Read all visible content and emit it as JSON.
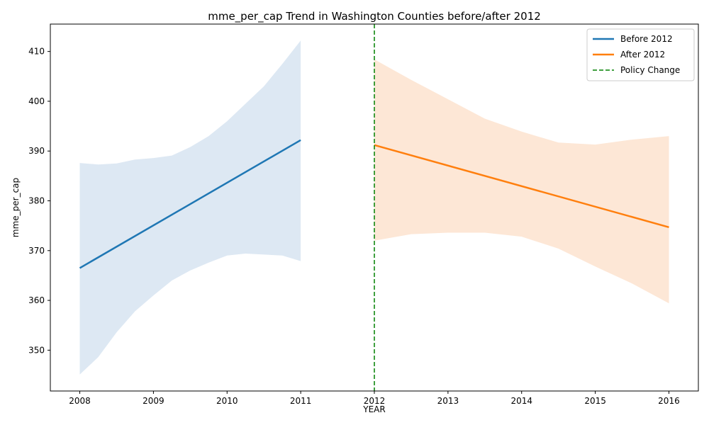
{
  "chart_data": {
    "type": "line",
    "title": "mme_per_cap Trend in Washington Counties before/after 2012",
    "xlabel": "YEAR",
    "ylabel": "mme_per_cap",
    "xlim": [
      2007.6,
      2016.4
    ],
    "ylim": [
      341.8,
      415.5
    ],
    "x_ticks": [
      2008,
      2009,
      2010,
      2011,
      2012,
      2013,
      2014,
      2015,
      2016
    ],
    "y_ticks": [
      350,
      360,
      370,
      380,
      390,
      400,
      410
    ],
    "grid": false,
    "legend_position": "top-right",
    "series": [
      {
        "name": "Before 2012",
        "color": "#1f77b4",
        "band_color": "#dde8f3",
        "line": {
          "x": [
            2008,
            2011
          ],
          "y": [
            366.5,
            392.2
          ]
        },
        "ci_x": [
          2008,
          2008.25,
          2008.5,
          2008.75,
          2009,
          2009.25,
          2009.5,
          2009.75,
          2010,
          2010.25,
          2010.5,
          2010.75,
          2011
        ],
        "ci_upper": [
          387.6,
          387.3,
          387.5,
          388.3,
          388.6,
          389.1,
          390.8,
          393.0,
          396.0,
          399.5,
          403.0,
          407.5,
          412.2
        ],
        "ci_lower": [
          345.1,
          348.6,
          353.6,
          357.8,
          361.0,
          364.0,
          366.0,
          367.6,
          369.0,
          369.4,
          369.2,
          369.0,
          367.9
        ]
      },
      {
        "name": "After 2012",
        "color": "#ff7f0e",
        "band_color": "#fde7d6",
        "line": {
          "x": [
            2012,
            2016
          ],
          "y": [
            391.2,
            374.7
          ]
        },
        "ci_x": [
          2012,
          2012.5,
          2013,
          2013.5,
          2014,
          2014.5,
          2015,
          2015.5,
          2016
        ],
        "ci_upper": [
          408.4,
          404.3,
          400.4,
          396.5,
          393.9,
          391.7,
          391.3,
          392.3,
          393.0
        ],
        "ci_lower": [
          372.0,
          373.3,
          373.6,
          373.6,
          372.8,
          370.4,
          366.8,
          363.4,
          359.4
        ]
      }
    ],
    "vline": {
      "x": 2012,
      "name": "Policy Change",
      "color": "#008000"
    }
  }
}
